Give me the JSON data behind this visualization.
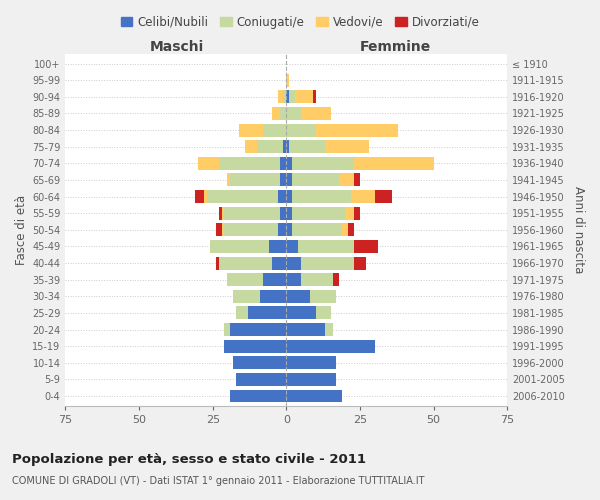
{
  "age_groups": [
    "0-4",
    "5-9",
    "10-14",
    "15-19",
    "20-24",
    "25-29",
    "30-34",
    "35-39",
    "40-44",
    "45-49",
    "50-54",
    "55-59",
    "60-64",
    "65-69",
    "70-74",
    "75-79",
    "80-84",
    "85-89",
    "90-94",
    "95-99",
    "100+"
  ],
  "birth_years": [
    "2006-2010",
    "2001-2005",
    "1996-2000",
    "1991-1995",
    "1986-1990",
    "1981-1985",
    "1976-1980",
    "1971-1975",
    "1966-1970",
    "1961-1965",
    "1956-1960",
    "1951-1955",
    "1946-1950",
    "1941-1945",
    "1936-1940",
    "1931-1935",
    "1926-1930",
    "1921-1925",
    "1916-1920",
    "1911-1915",
    "≤ 1910"
  ],
  "maschi": {
    "celibi": [
      19,
      17,
      18,
      21,
      19,
      13,
      9,
      8,
      5,
      6,
      3,
      2,
      3,
      2,
      2,
      1,
      0,
      0,
      0,
      0,
      0
    ],
    "coniugati": [
      0,
      0,
      0,
      0,
      2,
      4,
      9,
      12,
      18,
      20,
      18,
      19,
      24,
      17,
      21,
      9,
      8,
      2,
      1,
      0,
      0
    ],
    "vedovi": [
      0,
      0,
      0,
      0,
      0,
      0,
      0,
      0,
      0,
      0,
      1,
      1,
      1,
      1,
      7,
      4,
      8,
      3,
      2,
      0,
      0
    ],
    "divorziati": [
      0,
      0,
      0,
      0,
      0,
      0,
      0,
      0,
      1,
      0,
      2,
      1,
      3,
      0,
      0,
      0,
      0,
      0,
      0,
      0,
      0
    ]
  },
  "femmine": {
    "nubili": [
      19,
      17,
      17,
      30,
      13,
      10,
      8,
      5,
      5,
      4,
      2,
      2,
      2,
      2,
      2,
      1,
      0,
      0,
      1,
      0,
      0
    ],
    "coniugate": [
      0,
      0,
      0,
      0,
      3,
      5,
      9,
      11,
      18,
      19,
      17,
      18,
      20,
      16,
      21,
      12,
      10,
      5,
      2,
      0,
      0
    ],
    "vedove": [
      0,
      0,
      0,
      0,
      0,
      0,
      0,
      0,
      0,
      0,
      2,
      3,
      8,
      5,
      27,
      15,
      28,
      10,
      6,
      1,
      0
    ],
    "divorziate": [
      0,
      0,
      0,
      0,
      0,
      0,
      0,
      2,
      4,
      8,
      2,
      2,
      6,
      2,
      0,
      0,
      0,
      0,
      1,
      0,
      0
    ]
  },
  "colors": {
    "celibi_nubili": "#4472C4",
    "coniugati_e": "#C5D9A0",
    "vedovi_e": "#FFCC66",
    "divorziati_e": "#CC2222"
  },
  "xlim": 75,
  "title": "Popolazione per età, sesso e stato civile - 2011",
  "subtitle": "COMUNE DI GRADOLI (VT) - Dati ISTAT 1° gennaio 2011 - Elaborazione TUTTITALIA.IT",
  "ylabel_left": "Fasce di età",
  "ylabel_right": "Anni di nascita",
  "xlabel_maschi": "Maschi",
  "xlabel_femmine": "Femmine",
  "bg_color": "#f0f0f0",
  "plot_bg_color": "#ffffff"
}
